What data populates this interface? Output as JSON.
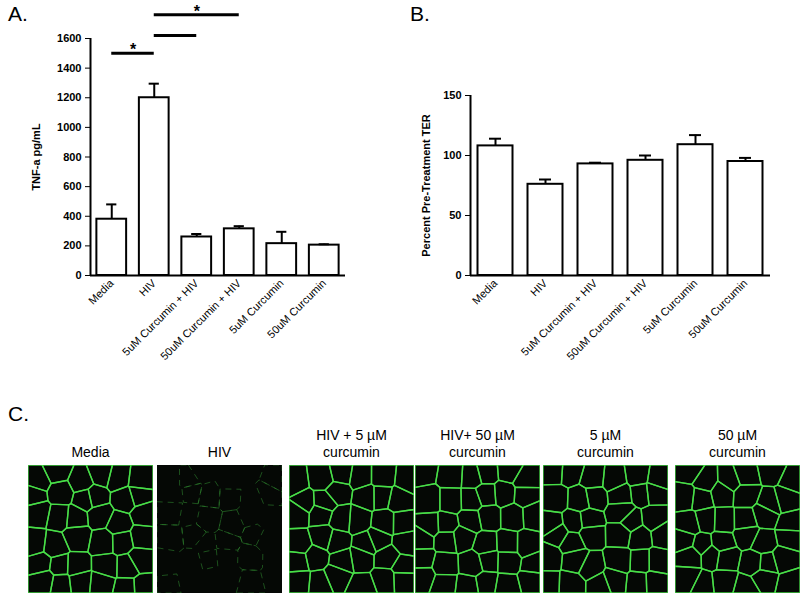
{
  "chart_data": [
    {
      "type": "bar",
      "title": "A.",
      "categories": [
        "Media",
        "HIV",
        "5uM Curcumin + HIV",
        "50uM Curcumin + HIV",
        "5uM Curcumin",
        "50uM Curcumin"
      ],
      "values": [
        380,
        1200,
        260,
        315,
        215,
        205
      ],
      "errors": [
        100,
        95,
        20,
        18,
        80,
        6
      ],
      "ylabel": "TNF-a pg/mL",
      "ylim": [
        0,
        1600
      ],
      "yticks": [
        0,
        200,
        400,
        600,
        800,
        1000,
        1200,
        1400,
        1600
      ],
      "annotations": [
        {
          "from": "Media",
          "to": "HIV",
          "y": 1500,
          "label": "*"
        },
        {
          "from": "HIV",
          "to": "5uM Curcumin + HIV",
          "y": 1620
        },
        {
          "from": "HIV",
          "to": "50uM Curcumin + HIV",
          "y": 1760,
          "label": "*"
        }
      ]
    },
    {
      "type": "bar",
      "title": "B.",
      "categories": [
        "Media",
        "HIV",
        "5uM Curcumin + HIV",
        "50uM Curcumin + HIV",
        "5uM Curcumin",
        "50uM Curcumin"
      ],
      "values": [
        108,
        76,
        93,
        96,
        109,
        95
      ],
      "errors": [
        6,
        4,
        1,
        4,
        8,
        3
      ],
      "ylabel": "Percent Pre-Treatment TER",
      "ylim": [
        0,
        150
      ],
      "yticks": [
        0,
        50,
        100,
        150
      ]
    }
  ],
  "images": {
    "title": "C.",
    "labels": [
      "Media",
      "HIV",
      "HIV + 5 µM\ncurcumin",
      "HIV+ 50 µM\ncurcumin",
      "5 µM\ncurcumin",
      "50 µM\ncurcumin"
    ]
  }
}
